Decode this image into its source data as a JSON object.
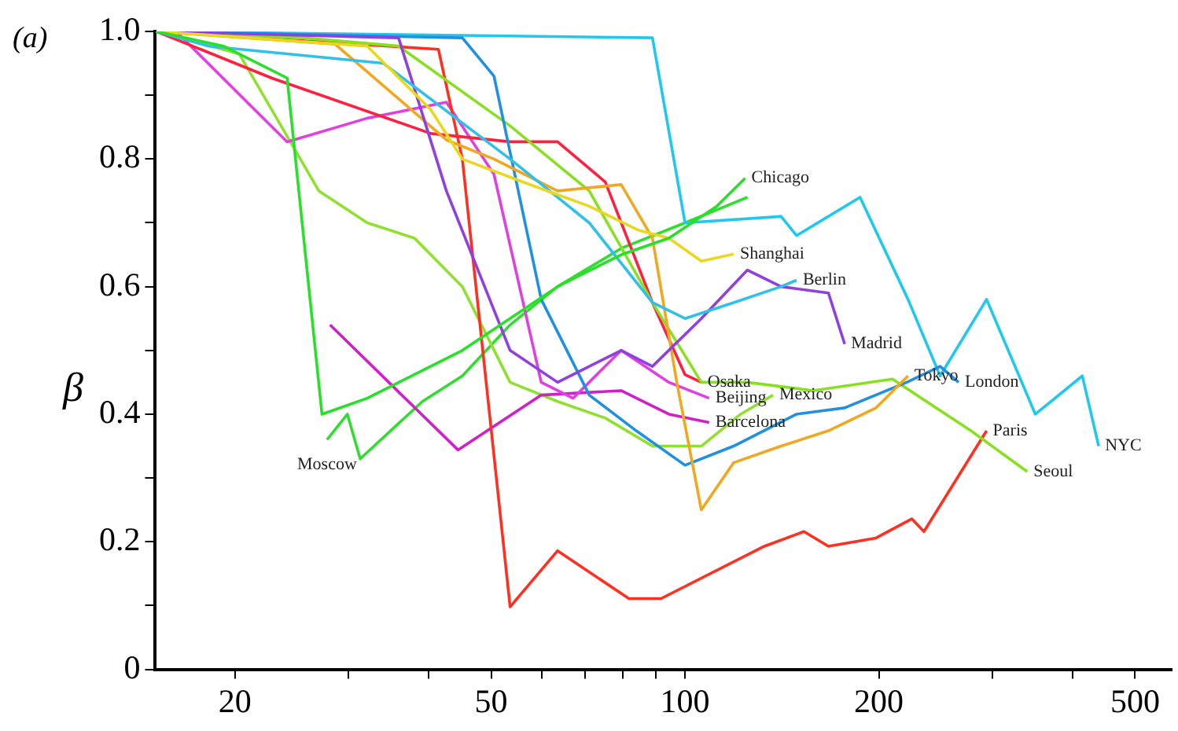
{
  "chart_data": {
    "type": "line",
    "ylabel": "β",
    "annotations": [
      "(a)"
    ],
    "log": "x",
    "grid": false,
    "legend": false,
    "marker": "none",
    "line_style": "solid",
    "xlim": [
      15,
      570
    ],
    "xticks": [
      20,
      {
        "value": 30,
        "label": null
      },
      {
        "value": 40,
        "label": null
      },
      50,
      {
        "value": 60,
        "label": null
      },
      {
        "value": 70,
        "label": null
      },
      {
        "value": 80,
        "label": null
      },
      {
        "value": 90,
        "label": null
      },
      100,
      200,
      {
        "value": 300,
        "label": null
      },
      {
        "value": 400,
        "label": null
      },
      500
    ],
    "ylim": [
      0,
      1
    ],
    "yticks": [
      0,
      {
        "value": 0.1,
        "label": null
      },
      0.2,
      {
        "value": 0.3,
        "label": null
      },
      0.4,
      {
        "value": 0.5,
        "label": null
      },
      0.6,
      {
        "value": 0.7,
        "label": null
      },
      0.8,
      {
        "value": 0.9,
        "label": null
      },
      {
        "value": 1,
        "label": "1.0"
      }
    ],
    "series": [
      {
        "name": "Chicago",
        "color": "#28e028",
        "x": [
          15.1,
          19.2,
          24.1,
          27.3,
          32.1,
          45.1,
          63.4,
          79.6,
          94.4,
          112,
          124
        ],
        "values": [
          1.0,
          0.977,
          0.927,
          0.4,
          0.425,
          0.5,
          0.6,
          0.65,
          0.676,
          0.726,
          0.77
        ]
      },
      {
        "name": "Shanghai",
        "color": "#e8d820",
        "x": [
          15.1,
          32.1,
          40.3,
          45.1,
          56,
          71,
          84.4,
          94.4,
          106,
          119
        ],
        "values": [
          1.0,
          0.977,
          0.877,
          0.8,
          0.764,
          0.726,
          0.689,
          0.676,
          0.64,
          0.651
        ]
      },
      {
        "name": "Berlin",
        "color": "#30c0e8",
        "x": [
          15.1,
          18.2,
          34,
          53.5,
          71,
          89,
          100,
          119,
          141,
          149
        ],
        "values": [
          1.0,
          0.977,
          0.95,
          0.8,
          0.7,
          0.575,
          0.55,
          0.575,
          0.6,
          0.61
        ]
      },
      {
        "name": "Madrid",
        "color": "#9040e0",
        "x": [
          15.1,
          35.9,
          42.6,
          53.5,
          63.4,
          79.6,
          89,
          106,
          125,
          141,
          167,
          177
        ],
        "values": [
          1.0,
          0.99,
          0.75,
          0.5,
          0.45,
          0.5,
          0.475,
          0.55,
          0.626,
          0.6,
          0.59,
          0.51
        ]
      },
      {
        "name": "Tokyo",
        "color": "#f0a820",
        "x": [
          15.1,
          28.6,
          42.6,
          50.5,
          63.4,
          79.6,
          89,
          97.1,
          106,
          119,
          141,
          167,
          198,
          222
        ],
        "values": [
          1.0,
          0.98,
          0.83,
          0.8,
          0.75,
          0.76,
          0.676,
          0.45,
          0.25,
          0.324,
          0.35,
          0.374,
          0.41,
          0.46
        ]
      },
      {
        "name": "London",
        "color": "#2090e0",
        "x": [
          15.1,
          45.1,
          50.5,
          59.8,
          71,
          84,
          100,
          119,
          149,
          177,
          221,
          249,
          266
        ],
        "values": [
          1.0,
          0.99,
          0.93,
          0.58,
          0.43,
          0.374,
          0.32,
          0.35,
          0.4,
          0.41,
          0.45,
          0.475,
          0.45
        ]
      },
      {
        "name": "NYC",
        "color": "#20c8f0",
        "x": [
          15.1,
          89,
          100,
          141,
          149,
          187,
          222,
          249,
          294,
          350,
          414,
          439
        ],
        "values": [
          1.0,
          0.99,
          0.7,
          0.71,
          0.68,
          0.74,
          0.58,
          0.46,
          0.58,
          0.4,
          0.46,
          0.35
        ]
      },
      {
        "name": "Seoul",
        "color": "#88e020",
        "x": [
          15.1,
          25.5,
          35.9,
          53.5,
          71,
          89,
          106,
          125,
          158,
          210,
          278,
          340
        ],
        "values": [
          1.0,
          0.99,
          0.977,
          0.852,
          0.75,
          0.575,
          0.45,
          0.45,
          0.437,
          0.455,
          0.374,
          0.31
        ]
      },
      {
        "name": "Paris",
        "color": "#ff3020",
        "x": [
          15.1,
          41.4,
          45.1,
          53.5,
          63.4,
          81.8,
          91.8,
          132.8,
          153,
          167,
          198,
          225,
          235,
          294
        ],
        "values": [
          1.0,
          0.972,
          0.8,
          0.098,
          0.186,
          0.111,
          0.111,
          0.193,
          0.216,
          0.193,
          0.206,
          0.236,
          0.216,
          0.374
        ]
      },
      {
        "name": "Osaka",
        "color": "#ff2040",
        "x": [
          15.1,
          22.8,
          40.3,
          53.5,
          63.4,
          75.2,
          89,
          100,
          106
        ],
        "values": [
          1.0,
          0.927,
          0.84,
          0.827,
          0.827,
          0.764,
          0.575,
          0.462,
          0.45
        ]
      },
      {
        "name": "Beijing",
        "color": "#e040e0",
        "x": [
          16.2,
          24.1,
          32.1,
          42.6,
          50.5,
          59.8,
          67,
          79.6,
          94.4,
          109
        ],
        "values": [
          1.0,
          0.827,
          0.864,
          0.889,
          0.776,
          0.45,
          0.425,
          0.5,
          0.45,
          0.425
        ]
      },
      {
        "name": "Barcelona",
        "color": "#d020c8",
        "x": [
          28.1,
          44.4,
          59.8,
          79.6,
          94.4,
          109
        ],
        "values": [
          0.54,
          0.344,
          0.43,
          0.437,
          0.4,
          0.387
        ]
      },
      {
        "name": "Mexico",
        "color": "#90e030",
        "x": [
          15.1,
          20.3,
          27,
          32.1,
          38,
          45.1,
          53.5,
          63.4,
          75.2,
          89,
          106,
          122,
          137
        ],
        "values": [
          1.0,
          0.965,
          0.75,
          0.7,
          0.676,
          0.6,
          0.45,
          0.42,
          0.394,
          0.35,
          0.35,
          0.4,
          0.43
        ]
      },
      {
        "name": "Moscow",
        "color": "#30dd30",
        "x": [
          125,
          100,
          79.6,
          63.4,
          53.5,
          45.1,
          39.1,
          31.3,
          29.9,
          27.8
        ],
        "values": [
          0.74,
          0.7,
          0.66,
          0.6,
          0.54,
          0.46,
          0.42,
          0.33,
          0.4,
          0.36
        ]
      }
    ]
  }
}
